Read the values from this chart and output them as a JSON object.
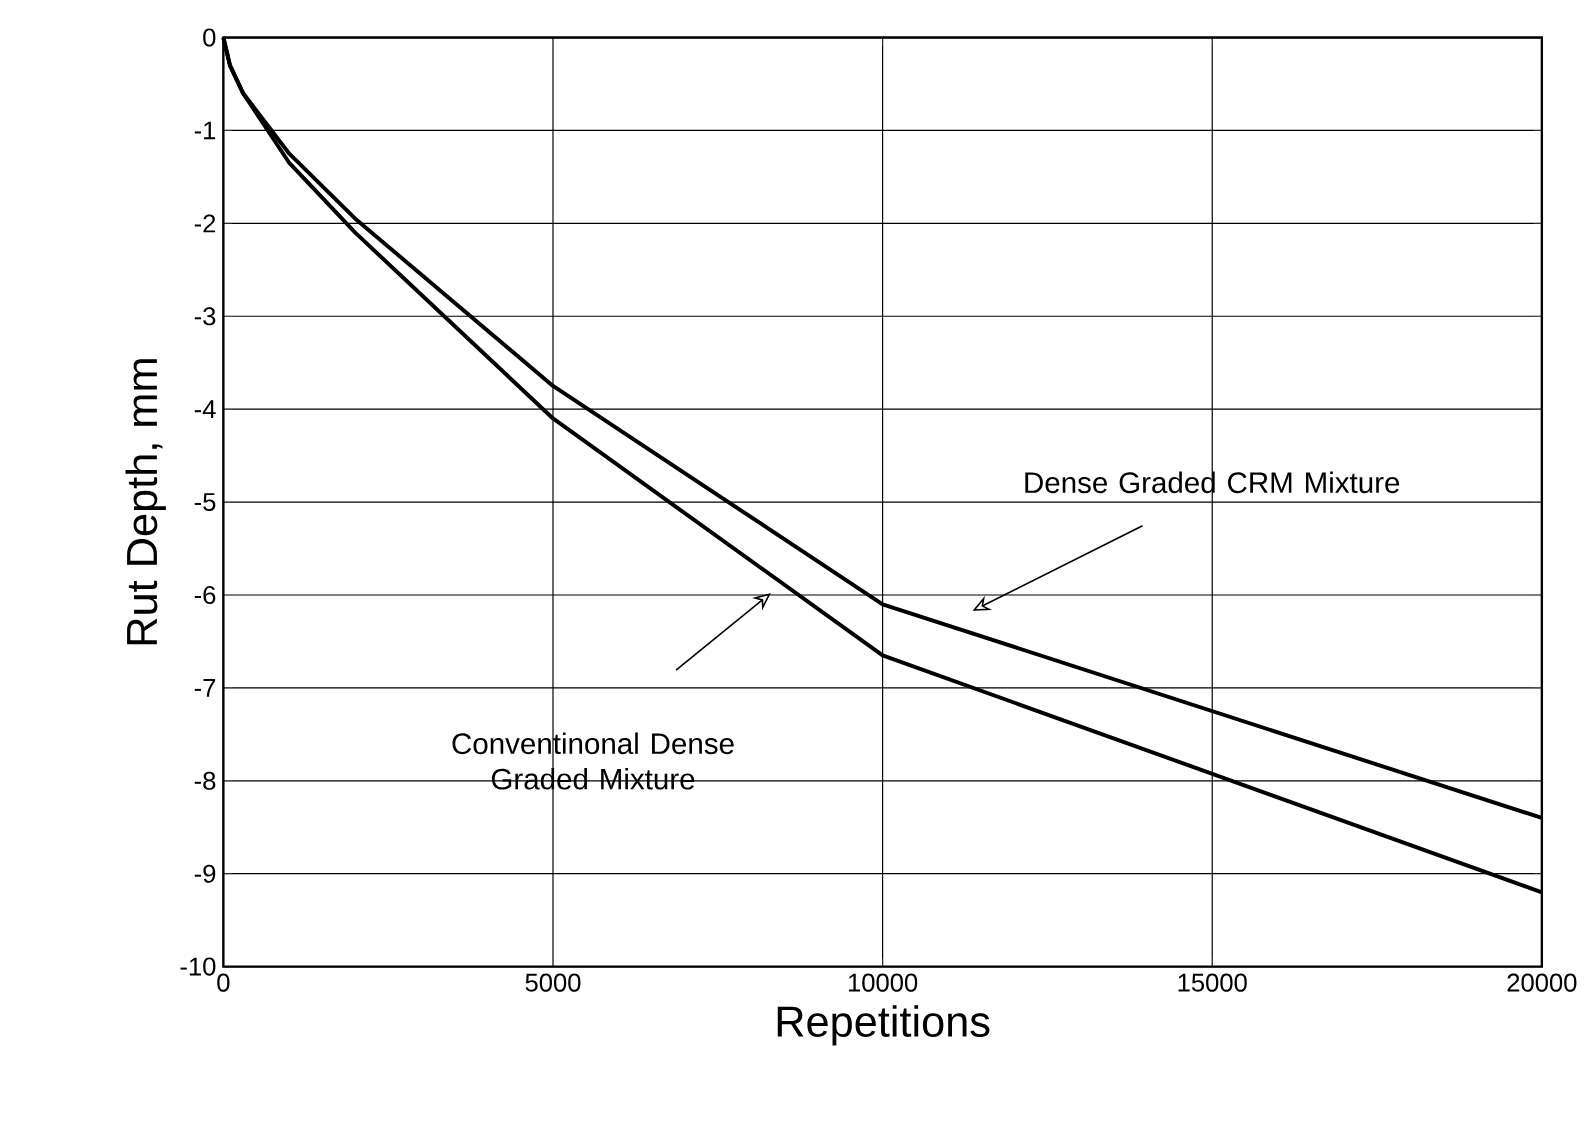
{
  "chart_data": {
    "type": "line",
    "xlabel": "Repetitions",
    "ylabel": "Rut Depth, mm",
    "xlim": [
      0,
      20000
    ],
    "ylim": [
      -10,
      0
    ],
    "xticks": [
      0,
      5000,
      10000,
      15000,
      20000
    ],
    "yticks": [
      -10,
      -9,
      -8,
      -7,
      -6,
      -5,
      -4,
      -3,
      -2,
      -1,
      0
    ],
    "grid": true,
    "marker": "none",
    "line_style": "solid",
    "series": [
      {
        "color": "#000000",
        "x": [
          0,
          100,
          300,
          1000,
          2000,
          5000,
          10000,
          20000
        ],
        "values": [
          0,
          -0.3,
          -0.6,
          -1.25,
          -1.95,
          -3.75,
          -6.1,
          -8.4
        ]
      },
      {
        "color": "#000000",
        "x": [
          0,
          100,
          300,
          1000,
          2000,
          5000,
          10000,
          20000
        ],
        "values": [
          0,
          -0.3,
          -0.6,
          -1.35,
          -2.1,
          -4.1,
          -6.65,
          -9.2
        ]
      }
    ],
    "annotations": [
      "Dense Graded CRM Mixture",
      "Conventinonal Dense Graded Mixture"
    ]
  }
}
